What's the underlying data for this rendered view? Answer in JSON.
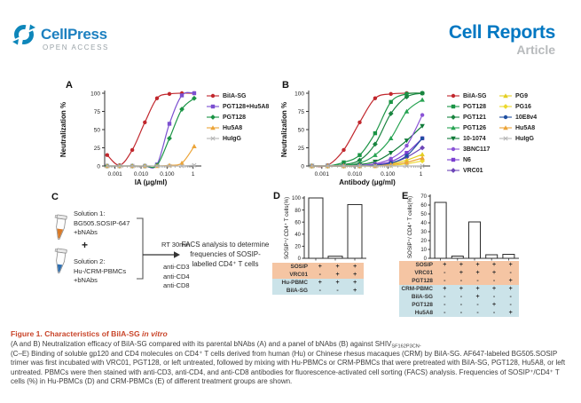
{
  "header": {
    "brand": "CellPress",
    "open_access": "OPEN ACCESS",
    "journal": "Cell Reports",
    "article_type": "Article"
  },
  "colors": {
    "brand_blue": "#1d80c0",
    "open_access_gray": "#9aa3a8",
    "journal_blue": "#0077c2",
    "article_gray": "#b7babc",
    "figure_title": "#c9452a",
    "orange_row": "#F5C5A3",
    "blue_row": "#CBE3E9",
    "tube1_liquid": "#d97a28",
    "tube2_liquid": "#2f6fb0"
  },
  "panels": {
    "A": {
      "label": "A"
    },
    "B": {
      "label": "B"
    },
    "C": {
      "label": "C",
      "solution1": "Solution 1:\nBG505.SOSIP-647\n+bNAbs",
      "plus": "+",
      "solution2": "Solution 2:\nHu-/CRM-PBMCs\n+bNAbs",
      "rt": "RT 30min",
      "stains": "anti-CD3\nanti-CD4\nanti-CD8",
      "facs": "FACS analysis to determine\nfrequencies of SOSIP-\nlabelled CD4⁺ T cells"
    },
    "D": {
      "label": "D"
    },
    "E": {
      "label": "E"
    }
  },
  "chart_data": [
    {
      "type": "line",
      "panel": "A",
      "xlabel": "IA (μg/ml)",
      "ylabel": "Neutralization %",
      "xscale": "log",
      "xrange": [
        0.0004,
        1.4
      ],
      "ylim": [
        0,
        100
      ],
      "xticks": [
        0.001,
        0.01,
        0.1,
        1
      ],
      "xtick_labels": [
        "0.001",
        "0.010",
        "0.100",
        "1"
      ],
      "yticks": [
        0,
        25,
        50,
        75,
        100
      ],
      "x": [
        0.0005,
        0.0015,
        0.0046,
        0.014,
        0.041,
        0.123,
        0.37,
        1.1
      ],
      "series": [
        {
          "name": "BiIA-SG",
          "color": "#c1272d",
          "marker": "circle",
          "y": [
            15,
            1,
            22,
            60,
            93,
            99,
            100,
            100
          ]
        },
        {
          "name": "PGT128+Hu5A8",
          "color": "#7b4fd0",
          "marker": "square",
          "y": [
            0,
            0,
            0,
            0,
            2,
            58,
            97,
            100
          ]
        },
        {
          "name": "PGT128",
          "color": "#1a9445",
          "marker": "diamond",
          "y": [
            0,
            0,
            0,
            0,
            1,
            38,
            78,
            93
          ]
        },
        {
          "name": "Hu5A8",
          "color": "#eca438",
          "marker": "tri",
          "y": [
            0,
            0,
            0,
            0,
            0,
            1,
            4,
            27
          ]
        },
        {
          "name": "HuIgG",
          "color": "#b3b3b3",
          "marker": "x",
          "y": [
            0,
            0,
            0,
            0,
            0,
            0,
            0,
            1
          ]
        }
      ]
    },
    {
      "type": "line",
      "panel": "B",
      "xlabel": "Antibody (μg/ml)",
      "ylabel": "Neutralization %",
      "xscale": "log",
      "xrange": [
        0.0004,
        1.4
      ],
      "ylim": [
        0,
        100
      ],
      "xticks": [
        0.001,
        0.01,
        0.1,
        1
      ],
      "xtick_labels": [
        "0.001",
        "0.010",
        "0.100",
        "1"
      ],
      "yticks": [
        0,
        25,
        50,
        75,
        100
      ],
      "x": [
        0.0005,
        0.0015,
        0.0046,
        0.014,
        0.041,
        0.123,
        0.37,
        1.1
      ],
      "legend_split": 8,
      "series": [
        {
          "name": "BiIA-SG",
          "color": "#c1272d",
          "marker": "circle",
          "y": [
            0,
            1,
            22,
            60,
            93,
            99,
            100,
            100
          ]
        },
        {
          "name": "PGT128",
          "color": "#1a9445",
          "marker": "square",
          "y": [
            0,
            0,
            5,
            15,
            45,
            88,
            99,
            100
          ]
        },
        {
          "name": "PGT121",
          "color": "#19843f",
          "marker": "diamond",
          "y": [
            0,
            0,
            2,
            8,
            30,
            72,
            95,
            100
          ]
        },
        {
          "name": "PGT126",
          "color": "#27a352",
          "marker": "tri",
          "y": [
            0,
            0,
            1,
            4,
            15,
            38,
            75,
            91
          ]
        },
        {
          "name": "10-1074",
          "color": "#0f7a38",
          "marker": "tridown",
          "y": [
            0,
            0,
            0,
            2,
            6,
            18,
            35,
            55
          ]
        },
        {
          "name": "3BNC117",
          "color": "#8a53d6",
          "marker": "circle",
          "y": [
            0,
            0,
            0,
            1,
            3,
            10,
            28,
            70
          ]
        },
        {
          "name": "N6",
          "color": "#7b3fd0",
          "marker": "square",
          "y": [
            0,
            0,
            0,
            0,
            2,
            6,
            18,
            38
          ]
        },
        {
          "name": "VRC01",
          "color": "#6d46b8",
          "marker": "diamond",
          "y": [
            0,
            0,
            0,
            0,
            1,
            4,
            12,
            25
          ]
        },
        {
          "name": "PG9",
          "color": "#e3cf22",
          "marker": "tri",
          "y": [
            0,
            0,
            0,
            0,
            1,
            3,
            8,
            16
          ]
        },
        {
          "name": "PG16",
          "color": "#ecd92f",
          "marker": "diamond",
          "y": [
            0,
            0,
            0,
            0,
            0,
            1,
            3,
            7
          ]
        },
        {
          "name": "10E8v4",
          "color": "#1f4fa0",
          "marker": "circle",
          "y": [
            0,
            0,
            0,
            0,
            1,
            4,
            14,
            38
          ]
        },
        {
          "name": "Hu5A8",
          "color": "#eca438",
          "marker": "tri",
          "y": [
            0,
            0,
            0,
            0,
            0,
            2,
            5,
            11
          ]
        },
        {
          "name": "HuIgG",
          "color": "#b3b3b3",
          "marker": "x",
          "y": [
            0,
            0,
            0,
            0,
            0,
            0,
            0,
            0
          ]
        }
      ]
    },
    {
      "type": "bar",
      "panel": "D",
      "ylabel": "SOSIP⁺/ CD4⁺ T cells(%)",
      "ylim": [
        0,
        100
      ],
      "yticks": [
        0,
        20,
        40,
        60,
        80,
        100
      ],
      "values": [
        100,
        3.5,
        89
      ],
      "conditions": [
        {
          "label": "SOSIP",
          "group": "orange",
          "signs": [
            "+",
            "+",
            "+"
          ]
        },
        {
          "label": "VRC01",
          "group": "orange",
          "signs": [
            "-",
            "+",
            "+"
          ]
        },
        {
          "label": "Hu-PBMC",
          "group": "blue",
          "signs": [
            "+",
            "+",
            "+"
          ]
        },
        {
          "label": "BiIA-SG",
          "group": "blue",
          "signs": [
            "-",
            "-",
            "+"
          ]
        }
      ]
    },
    {
      "type": "bar",
      "panel": "E",
      "ylabel": "SOSIP⁺/ CD4⁺ T cells(%)",
      "ylim": [
        0,
        70
      ],
      "yticks": [
        0,
        10,
        20,
        30,
        40,
        50,
        60,
        70
      ],
      "values": [
        63,
        2.5,
        41,
        4,
        4.5
      ],
      "conditions": [
        {
          "label": "SOSIP",
          "group": "orange",
          "signs": [
            "+",
            "+",
            "+",
            "+",
            "+"
          ]
        },
        {
          "label": "VRC01",
          "group": "orange",
          "signs": [
            "-",
            "+",
            "+",
            "+",
            "-"
          ]
        },
        {
          "label": "PGT128",
          "group": "orange",
          "signs": [
            "-",
            "-",
            "-",
            "-",
            "+"
          ]
        },
        {
          "label": "CRM-PBMC",
          "group": "blue",
          "signs": [
            "+",
            "+",
            "+",
            "+",
            "+"
          ]
        },
        {
          "label": "BiIA-SG",
          "group": "blue",
          "signs": [
            "-",
            "-",
            "+",
            "-",
            "-"
          ]
        },
        {
          "label": "PGT128",
          "group": "blue",
          "signs": [
            "-",
            "-",
            "-",
            "+",
            "-"
          ]
        },
        {
          "label": "Hu5A8",
          "group": "blue",
          "signs": [
            "-",
            "-",
            "-",
            "-",
            "+"
          ]
        }
      ]
    }
  ],
  "caption": {
    "title_main": "Figure 1. Characteristics of BiIA-SG ",
    "title_italic": "in vitro",
    "ab_pre": "(A and B) Neutralization efficacy of BiIA-SG compared with its parental bNAbs (A) and a panel of bNAbs (B) against SHIV",
    "ab_sub": "SF162P3CN",
    "ab_post": ".",
    "body": "(C–E) Binding of soluble gp120 and CD4 molecules on CD4⁺ T cells derived from human (Hu) or Chinese rhesus macaques (CRM) by BiIA-SG. AF647-labeled BG505.SOSIP trimer was first incubated with VRC01, PGT128, or left untreated, followed by mixing with Hu-PBMCs or CRM-PBMCs that were pretreated with BiIA-SG, PGT128, Hu5A8, or left untreated. PBMCs were then stained with anti-CD3, anti-CD4, and anti-CD8 antibodies for fluorescence-activated cell sorting (FACS) analysis. Frequencies of SOSIP⁺/CD4⁺ T cells (%) in Hu-PBMCs (D) and CRM-PBMCs (E) of different treatment groups are shown."
  }
}
